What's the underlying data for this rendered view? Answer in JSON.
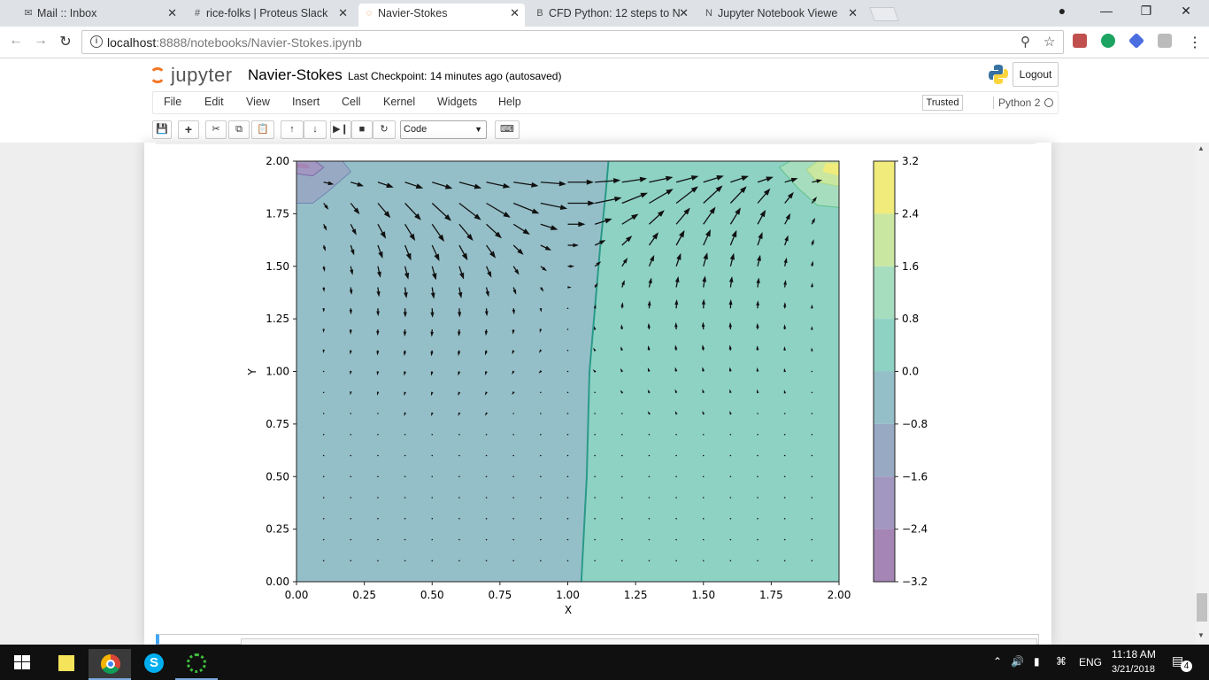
{
  "browser": {
    "tabs": [
      {
        "title": "Mail :: Inbox",
        "icon": "mail-icon",
        "active": false
      },
      {
        "title": "rice-folks | Proteus Slack",
        "icon": "slack-icon",
        "active": false
      },
      {
        "title": "Navier-Stokes",
        "icon": "jupyter-icon",
        "active": true
      },
      {
        "title": "CFD Python: 12 steps to N",
        "icon": "lb-icon",
        "active": false
      },
      {
        "title": "Jupyter Notebook Viewe",
        "icon": "nbviewer-icon",
        "active": false
      }
    ],
    "url_host": "localhost",
    "url_rest": ":8888/notebooks/Navier-Stokes.ipynb"
  },
  "jupyter": {
    "logo_text": "jupyter",
    "notebook_name": "Navier-Stokes",
    "checkpoint": "Last Checkpoint: 14 minutes ago (autosaved)",
    "logout": "Logout",
    "menu": [
      "File",
      "Edit",
      "View",
      "Insert",
      "Cell",
      "Kernel",
      "Widgets",
      "Help"
    ],
    "trusted": "Trusted",
    "kernel": "Python 2",
    "cell_type": "Code"
  },
  "chart_data": {
    "type": "contour-quiver",
    "xlabel": "X",
    "ylabel": "Y",
    "xlim": [
      0,
      2
    ],
    "ylim": [
      0,
      2
    ],
    "xticks": [
      "0.00",
      "0.25",
      "0.50",
      "0.75",
      "1.00",
      "1.25",
      "1.50",
      "1.75",
      "2.00"
    ],
    "yticks": [
      "0.00",
      "0.25",
      "0.50",
      "0.75",
      "1.00",
      "1.25",
      "1.50",
      "1.75",
      "2.00"
    ],
    "colorbar_ticks": [
      "3.2",
      "2.4",
      "1.6",
      "0.8",
      "0.0",
      "−0.8",
      "−1.6",
      "−2.4",
      "−3.2"
    ],
    "colorbar_range": [
      -3.2,
      3.2
    ],
    "colorbar_levels": [
      {
        "range": [
          2.4,
          3.2
        ],
        "color": "#f0eb7a"
      },
      {
        "range": [
          1.6,
          2.4
        ],
        "color": "#c9e7a0"
      },
      {
        "range": [
          0.8,
          1.6
        ],
        "color": "#a6ddbf"
      },
      {
        "range": [
          0.0,
          0.8
        ],
        "color": "#8ed2c4"
      },
      {
        "range": [
          -0.8,
          0.0
        ],
        "color": "#95bfc8"
      },
      {
        "range": [
          -1.6,
          -0.8
        ],
        "color": "#98aac3"
      },
      {
        "range": [
          -2.4,
          -1.6
        ],
        "color": "#a197c0"
      },
      {
        "range": [
          -3.2,
          -2.4
        ],
        "color": "#a585b5"
      }
    ],
    "zero_contour_x": [
      [
        0.0,
        1.05
      ],
      [
        0.5,
        1.07
      ],
      [
        1.0,
        1.08
      ],
      [
        1.3,
        1.1
      ],
      [
        1.6,
        1.12
      ],
      [
        1.85,
        1.14
      ],
      [
        2.0,
        1.15
      ]
    ],
    "pressure_left_region": -0.4,
    "pressure_right_region": 0.4
  },
  "taskbar": {
    "lang": "ENG",
    "time": "11:18 AM",
    "date": "3/21/2018",
    "notifications": "4"
  }
}
